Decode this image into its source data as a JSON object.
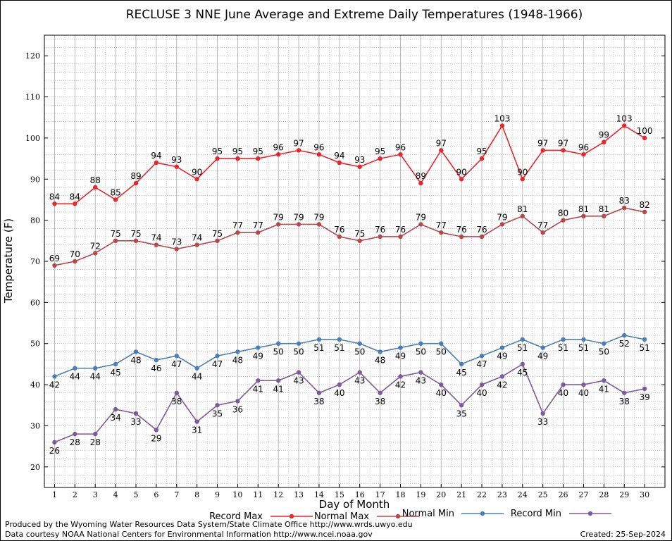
{
  "chart_data": {
    "type": "line",
    "title": "RECLUSE 3 NNE June Average and Extreme Daily Temperatures (1948-1966)",
    "xlabel": "Day of Month",
    "ylabel": "Temperature (F)",
    "ylim": [
      15,
      125
    ],
    "yticks": [
      20,
      30,
      40,
      50,
      60,
      70,
      80,
      90,
      100,
      110,
      120
    ],
    "x": [
      1,
      2,
      3,
      4,
      5,
      6,
      7,
      8,
      9,
      10,
      11,
      12,
      13,
      14,
      15,
      16,
      17,
      18,
      19,
      20,
      21,
      22,
      23,
      24,
      25,
      26,
      27,
      28,
      29,
      30
    ],
    "grid": true,
    "legend_position": "bottom",
    "series": [
      {
        "name": "Record Max",
        "color": "#e8262b",
        "label_position": "above",
        "values": [
          84,
          84,
          88,
          85,
          89,
          94,
          93,
          90,
          95,
          95,
          95,
          96,
          97,
          96,
          94,
          93,
          95,
          96,
          89,
          97,
          90,
          95,
          103,
          90,
          97,
          97,
          96,
          99,
          103,
          100
        ]
      },
      {
        "name": "Normal Max",
        "color": "#b8474b",
        "label_position": "above",
        "values": [
          69,
          70,
          72,
          75,
          75,
          74,
          73,
          74,
          75,
          77,
          77,
          79,
          79,
          79,
          76,
          75,
          76,
          76,
          79,
          77,
          76,
          76,
          79,
          81,
          77,
          80,
          81,
          81,
          83,
          82
        ]
      },
      {
        "name": "Normal Min",
        "color": "#4a7fb5",
        "label_position": "below",
        "values": [
          42,
          44,
          44,
          45,
          48,
          46,
          47,
          44,
          47,
          48,
          49,
          50,
          50,
          51,
          51,
          50,
          48,
          49,
          50,
          50,
          45,
          47,
          49,
          51,
          49,
          51,
          51,
          50,
          52,
          51
        ]
      },
      {
        "name": "Record Min",
        "color": "#7b5a9e",
        "label_position": "below",
        "values": [
          26,
          28,
          28,
          34,
          33,
          29,
          38,
          31,
          35,
          36,
          41,
          41,
          43,
          38,
          40,
          43,
          38,
          42,
          43,
          40,
          35,
          40,
          42,
          45,
          33,
          40,
          40,
          41,
          38,
          39
        ]
      }
    ]
  },
  "footer": {
    "line1": "Produced by the Wyoming Water Resources Data System/State Climate Office http://www.wrds.uwyo.edu",
    "line2": "Data courtesy NOAA National Centers for Environmental Information http://www.ncei.noaa.gov",
    "created": "Created:  25-Sep-2024"
  }
}
